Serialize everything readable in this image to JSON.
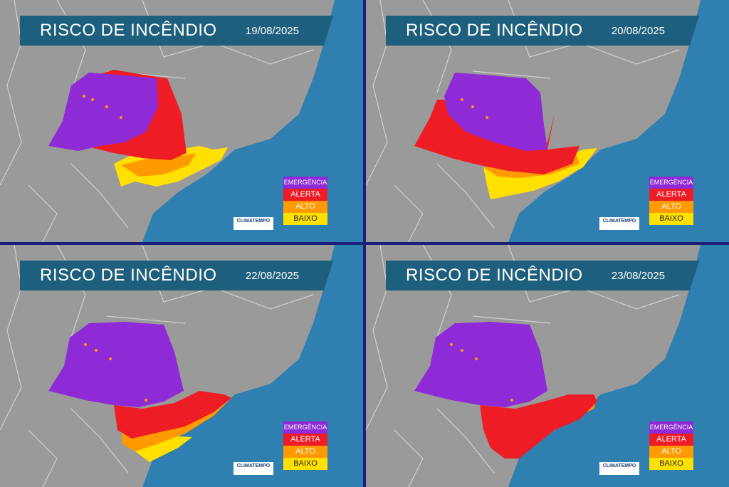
{
  "panels": [
    {
      "title": "RISCO DE INCÊNDIO",
      "date": "19/08/2025"
    },
    {
      "title": "RISCO DE INCÊNDIO",
      "date": "20/08/2025"
    },
    {
      "title": "RISCO DE INCÊNDIO",
      "date": "22/08/2025"
    },
    {
      "title": "RISCO DE INCÊNDIO",
      "date": "23/08/2025"
    }
  ],
  "legend": {
    "emergencia": "EMERGÊNCIA",
    "alerta": "ALERTA",
    "alto": "ALTO",
    "baixo": "BAIXO"
  },
  "logo": "CLIMATEMPO",
  "colors": {
    "ocean": "#2f7fb0",
    "land": "#9a9a9a",
    "emergencia": "#8e2ad6",
    "alerta": "#ee1c24",
    "alto": "#ff9a00",
    "baixo": "#ffe000",
    "banner": "#1d5f7c"
  }
}
